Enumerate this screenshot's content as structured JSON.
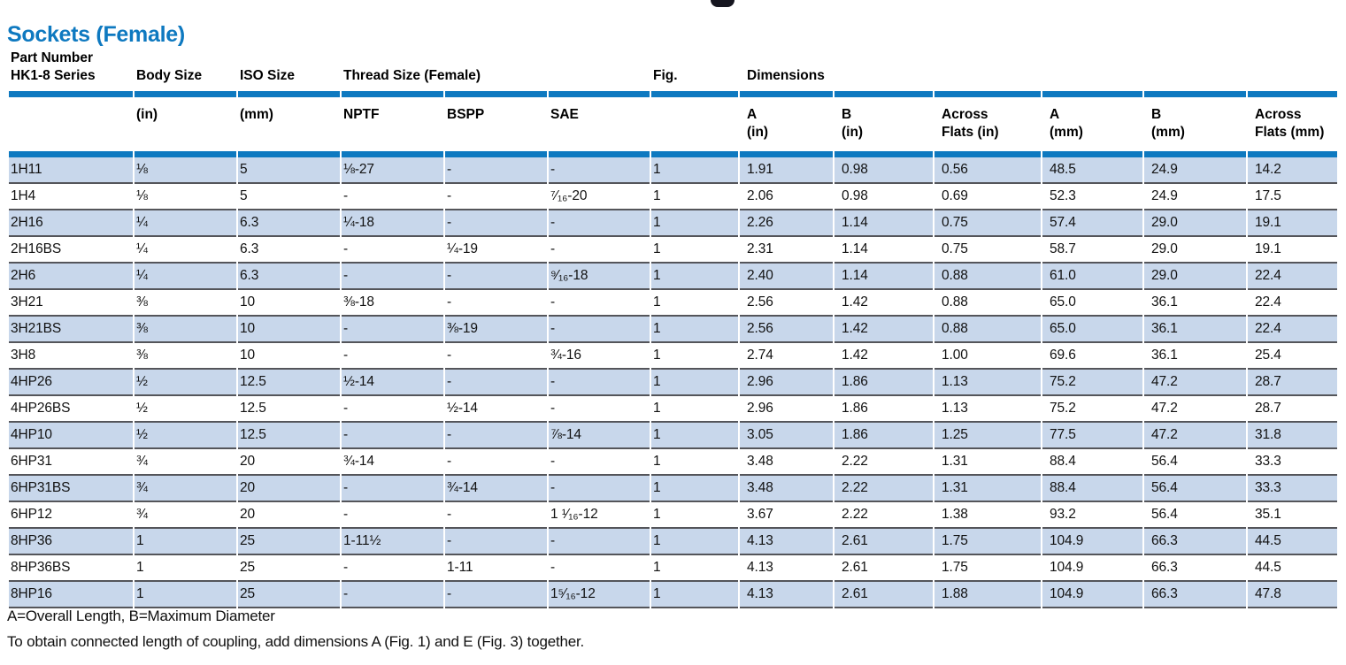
{
  "page": {
    "title": "Sockets (Female)",
    "footnotes": [
      "A=Overall Length, B=Maximum Diameter",
      "To obtain connected length of coupling, add dimensions A (Fig. 1) and E (Fig. 3) together."
    ]
  },
  "colors": {
    "title_blue": "#0e79c0",
    "header_bar_blue": "#0e79c0",
    "row_stripe_blue": "#c8d7eb",
    "row_separator_gray": "#54555a"
  },
  "table": {
    "group_headers": [
      "Part Number\nHK1-8 Series",
      "Body Size",
      "ISO Size",
      "Thread Size (Female)",
      "",
      "",
      "Fig.",
      "Dimensions",
      "",
      "",
      "",
      "",
      ""
    ],
    "sub_headers": [
      "",
      "(in)",
      "(mm)",
      "NPTF",
      "BSPP",
      "SAE",
      "",
      "A\n(in)",
      "B\n(in)",
      "Across\nFlats (in)",
      "A\n(mm)",
      "B\n(mm)",
      "Across\nFlats (mm)"
    ],
    "rows": [
      [
        "1H11",
        "⅛",
        "5",
        "⅛-27",
        "-",
        "-",
        "1",
        "1.91",
        "0.98",
        "0.56",
        "48.5",
        "24.9",
        "14.2"
      ],
      [
        "1H4",
        "⅛",
        "5",
        "-",
        "-",
        "⁷⁄₁₆-20",
        "1",
        "2.06",
        "0.98",
        "0.69",
        "52.3",
        "24.9",
        "17.5"
      ],
      [
        "2H16",
        "¼",
        "6.3",
        "¼-18",
        "-",
        "-",
        "1",
        "2.26",
        "1.14",
        "0.75",
        "57.4",
        "29.0",
        "19.1"
      ],
      [
        "2H16BS",
        "¼",
        "6.3",
        "-",
        "¼-19",
        "-",
        "1",
        "2.31",
        "1.14",
        "0.75",
        "58.7",
        "29.0",
        "19.1"
      ],
      [
        "2H6",
        "¼",
        "6.3",
        "-",
        "-",
        "⁹⁄₁₆-18",
        "1",
        "2.40",
        "1.14",
        "0.88",
        "61.0",
        "29.0",
        "22.4"
      ],
      [
        "3H21",
        "⅜",
        "10",
        "⅜-18",
        "-",
        "-",
        "1",
        "2.56",
        "1.42",
        "0.88",
        "65.0",
        "36.1",
        "22.4"
      ],
      [
        "3H21BS",
        "⅜",
        "10",
        "-",
        "⅜-19",
        "-",
        "1",
        "2.56",
        "1.42",
        "0.88",
        "65.0",
        "36.1",
        "22.4"
      ],
      [
        "3H8",
        "⅜",
        "10",
        "-",
        "-",
        "¾-16",
        "1",
        "2.74",
        "1.42",
        "1.00",
        "69.6",
        "36.1",
        "25.4"
      ],
      [
        "4HP26",
        "½",
        "12.5",
        "½-14",
        "-",
        "-",
        "1",
        "2.96",
        "1.86",
        "1.13",
        "75.2",
        "47.2",
        "28.7"
      ],
      [
        "4HP26BS",
        "½",
        "12.5",
        "-",
        "½-14",
        "-",
        "1",
        "2.96",
        "1.86",
        "1.13",
        "75.2",
        "47.2",
        "28.7"
      ],
      [
        "4HP10",
        "½",
        "12.5",
        "-",
        "-",
        "⅞-14",
        "1",
        "3.05",
        "1.86",
        "1.25",
        "77.5",
        "47.2",
        "31.8"
      ],
      [
        "6HP31",
        "¾",
        "20",
        "¾-14",
        "-",
        "-",
        "1",
        "3.48",
        "2.22",
        "1.31",
        "88.4",
        "56.4",
        "33.3"
      ],
      [
        "6HP31BS",
        "¾",
        "20",
        "-",
        "¾-14",
        "-",
        "1",
        "3.48",
        "2.22",
        "1.31",
        "88.4",
        "56.4",
        "33.3"
      ],
      [
        "6HP12",
        "¾",
        "20",
        "-",
        "-",
        "1 ¹⁄₁₆-12",
        "1",
        "3.67",
        "2.22",
        "1.38",
        "93.2",
        "56.4",
        "35.1"
      ],
      [
        "8HP36",
        "1",
        "25",
        "1-11½",
        "-",
        "-",
        "1",
        "4.13",
        "2.61",
        "1.75",
        "104.9",
        "66.3",
        "44.5"
      ],
      [
        "8HP36BS",
        "1",
        "25",
        "-",
        "1-11",
        "-",
        "1",
        "4.13",
        "2.61",
        "1.75",
        "104.9",
        "66.3",
        "44.5"
      ],
      [
        "8HP16",
        "1",
        "25",
        "-",
        "-",
        "1⁵⁄₁₆-12",
        "1",
        "4.13",
        "2.61",
        "1.88",
        "104.9",
        "66.3",
        "47.8"
      ]
    ]
  }
}
